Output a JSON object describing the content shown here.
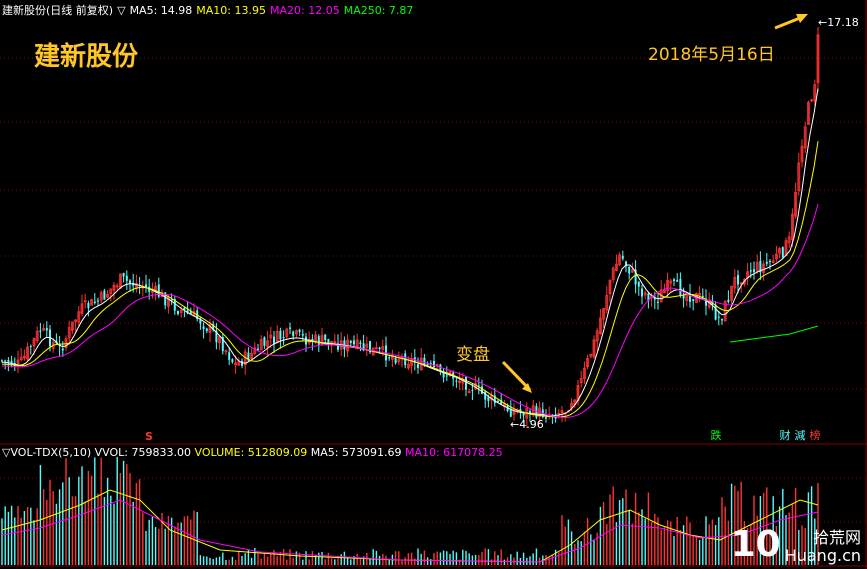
{
  "header": {
    "title": "建新股份(日线 前复权)",
    "indicator_label": "▽",
    "ma5_label": "MA5: 14.98",
    "ma10_label": "MA10: 13.95",
    "ma20_label": "MA20: 12.05",
    "ma250_label": "MA250: 7.87"
  },
  "chart_overlay": {
    "stock_name": "建新股份",
    "date_annotation": "2018年5月16日",
    "turn_annotation": "变盘",
    "low_price_label": "4.96",
    "high_price_label": "17.18",
    "marker_s": "S"
  },
  "badges": {
    "die": "跌",
    "cai": "财",
    "jian": "減",
    "bang": "榜"
  },
  "volume_header": {
    "indicator_label": "▽VOL-TDX(5,10)",
    "vvol_label": "VVOL: 759833.00",
    "volume_label": "VOLUME: 512809.09",
    "ma5_label": "MA5: 573091.69",
    "ma10_label": "MA10: 617078.25"
  },
  "logo": {
    "number": "10",
    "chinese": "拾荒网",
    "domain": "Huang.cn"
  },
  "colors": {
    "up": "#ff3232",
    "down": "#54fcfc",
    "ma5": "#ffffff",
    "ma10": "#ffff00",
    "ma20": "#ff00ff",
    "ma250": "#00ff00",
    "accent": "#ffc627",
    "grid": "#800000"
  }
}
